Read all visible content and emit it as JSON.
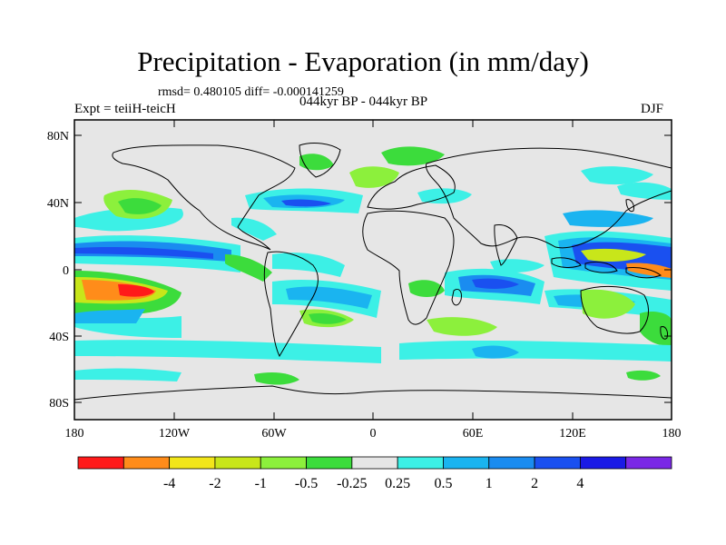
{
  "title": "Precipitation - Evaporation (in mm/day)",
  "stats": "rmsd= 0.480105 diff= -0.000141259",
  "expt": "Expt = teiiH-teicH",
  "period": "044kyr BP - 044kyr BP",
  "season": "DJF",
  "lat_ticks": [
    "80N",
    "40N",
    "0",
    "40S",
    "80S"
  ],
  "lon_ticks": [
    "180",
    "120W",
    "60W",
    "0",
    "60E",
    "120E",
    "180"
  ],
  "colorbar": {
    "colors": [
      "#ff1a1a",
      "#ff8c1a",
      "#f2e61a",
      "#c8e61a",
      "#8cf03c",
      "#3cdc3c",
      "#e6e6e6",
      "#3cf0e6",
      "#1ab4f0",
      "#1a8cf0",
      "#1a50f0",
      "#1a1ae6",
      "#7a28e6"
    ],
    "labels": [
      "-4",
      "-2",
      "-1",
      "-0.5",
      "-0.25",
      "0.25",
      "0.5",
      "1",
      "2",
      "4"
    ]
  }
}
